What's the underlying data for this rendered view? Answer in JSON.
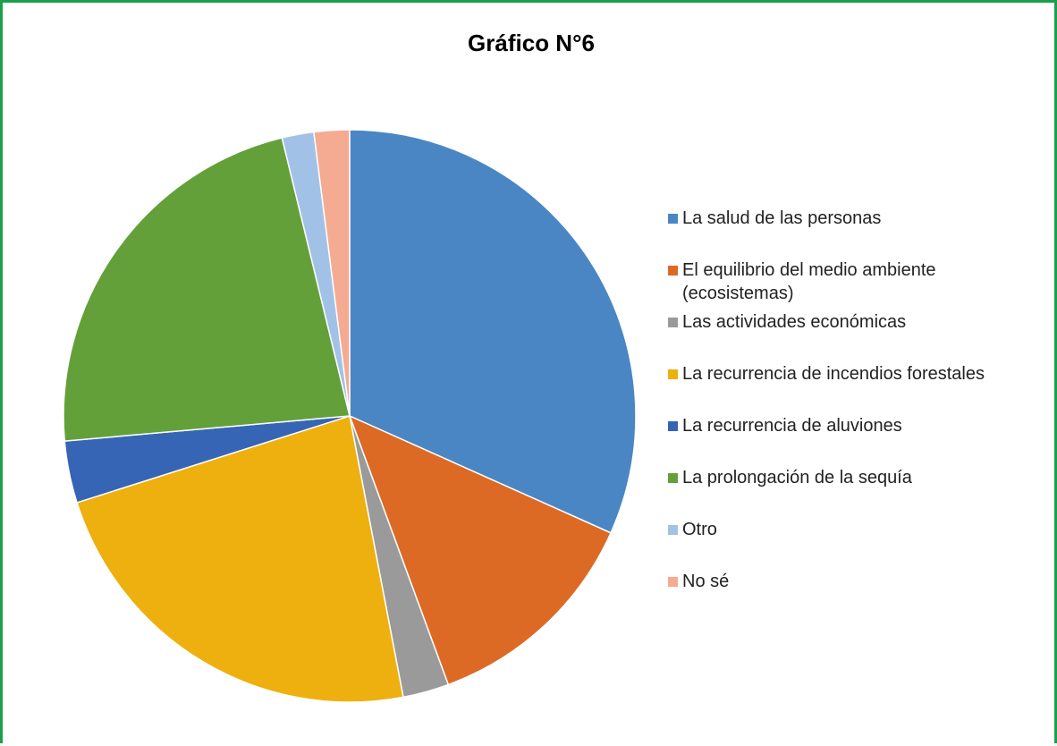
{
  "chart_data": {
    "type": "pie",
    "title": "Gráfico N°6",
    "categories": [
      "La salud de las personas",
      "El equilibrio del medio ambiente (ecosistemas)",
      "Las actividades económicas",
      "La recurrencia de incendios forestales",
      "La recurrencia de aluviones",
      "La prolongación de la sequía",
      "Otro",
      "No sé"
    ],
    "values": [
      31.7,
      12.7,
      2.6,
      23.1,
      3.5,
      22.6,
      1.8,
      2.0
    ],
    "colors": [
      "#4a86c4",
      "#dc6a25",
      "#9a9a9a",
      "#edb00f",
      "#3765b5",
      "#63a03a",
      "#a2c1e7",
      "#f4ab91"
    ],
    "legend": "right"
  }
}
